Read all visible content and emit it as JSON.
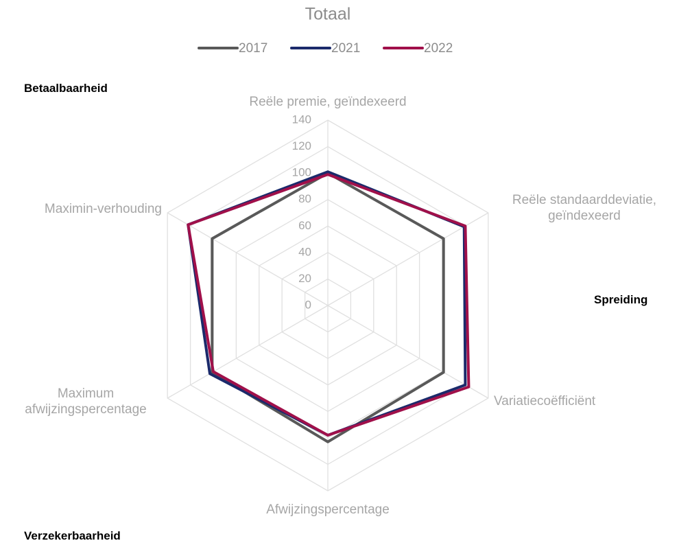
{
  "chart_data": {
    "type": "radar",
    "title": "Totaal",
    "categories": [
      "Reële premie, geïndexeerd",
      "Reële standaarddeviatie, geïndexeerd",
      "Variatiecoëfficiënt",
      "Afwijzingspercentage",
      "Maximum afwijzingspercentage",
      "Maximin-verhouding"
    ],
    "series": [
      {
        "name": "2017",
        "color": "#595959",
        "values": [
          100,
          101,
          101,
          103,
          101,
          101
        ]
      },
      {
        "name": "2021",
        "color": "#1b2a6b",
        "values": [
          101,
          119,
          120,
          98,
          103,
          122
        ]
      },
      {
        "name": "2022",
        "color": "#a0104a",
        "values": [
          99,
          120,
          123,
          98,
          100,
          122
        ]
      }
    ],
    "ylim": [
      0,
      140
    ],
    "yticks": [
      0,
      20,
      40,
      60,
      80,
      100,
      120,
      140
    ],
    "grid": true,
    "annotations": [
      "Betaalbaarheid",
      "Spreiding",
      "Verzekerbaarheid"
    ]
  }
}
